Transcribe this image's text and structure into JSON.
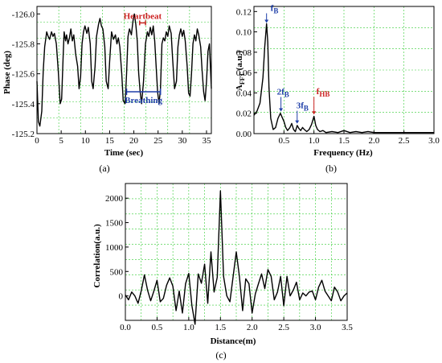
{
  "chart_data": [
    {
      "panel": "(a)",
      "type": "line",
      "xlabel": "Time (sec)",
      "ylabel": "Phase (deg)",
      "xlim": [
        0,
        36
      ],
      "ylim": [
        -125.2,
        -126.05
      ],
      "y_axis_inverted": true,
      "x_ticks": [
        0,
        5,
        10,
        15,
        20,
        25,
        30,
        35
      ],
      "x_tick_labels": [
        "0",
        "5",
        "10",
        "15",
        "20",
        "25",
        "30",
        "35"
      ],
      "y_ticks": [
        -126.0,
        -125.8,
        -125.6,
        -125.4,
        -125.2
      ],
      "y_tick_labels": [
        "-126.0",
        "-125.8",
        "-125.6",
        "-125.4",
        "-125.2"
      ],
      "grid": true,
      "series": [
        {
          "x": [
            0,
            0.3,
            0.6,
            1.0,
            1.3,
            1.6,
            2.0,
            2.3,
            2.6,
            3.0,
            3.3,
            3.6,
            4.0,
            4.4,
            4.8,
            5.1,
            5.4,
            5.6,
            5.9,
            6.1,
            6.4,
            6.7,
            7.0,
            7.3,
            7.6,
            8.0,
            8.4,
            8.7,
            9.0,
            9.3,
            9.6,
            9.9,
            10.3,
            10.6,
            11.0,
            11.3,
            11.6,
            12.0,
            12.3,
            12.7,
            13.0,
            13.3,
            13.6,
            14.0,
            14.3,
            14.7,
            15.0,
            15.4,
            15.8,
            16.2,
            16.5,
            16.8,
            17.1,
            17.5,
            17.8,
            18.2,
            18.5,
            18.8,
            19.1,
            19.5,
            19.8,
            20.1,
            20.4,
            20.7,
            21.0,
            21.3,
            21.6,
            22.0,
            22.4,
            22.8,
            23.1,
            23.4,
            23.7,
            24.0,
            24.3,
            24.6,
            24.9,
            25.2,
            25.5,
            25.8,
            26.1,
            26.4,
            26.7,
            27.0,
            27.3,
            27.7,
            28.0,
            28.4,
            28.8,
            29.1,
            29.4,
            29.7,
            30.0,
            30.3,
            30.6,
            31.0,
            31.3,
            31.6,
            31.9,
            32.2,
            32.5,
            32.8,
            33.1,
            33.4,
            33.8,
            34.1,
            34.4,
            34.7,
            35.0,
            35.3,
            35.6,
            36.0
          ],
          "y": [
            -125.55,
            -125.28,
            -125.25,
            -125.35,
            -125.62,
            -125.78,
            -125.88,
            -125.85,
            -125.83,
            -125.88,
            -125.85,
            -125.87,
            -125.8,
            -125.62,
            -125.4,
            -125.43,
            -125.72,
            -125.88,
            -125.82,
            -125.86,
            -125.8,
            -125.84,
            -125.9,
            -125.82,
            -125.86,
            -125.73,
            -125.65,
            -125.5,
            -125.58,
            -125.8,
            -125.88,
            -125.92,
            -125.87,
            -125.91,
            -125.8,
            -125.55,
            -125.5,
            -125.65,
            -125.85,
            -125.93,
            -125.97,
            -125.92,
            -125.9,
            -125.78,
            -125.55,
            -125.5,
            -125.68,
            -125.88,
            -125.83,
            -125.86,
            -125.8,
            -125.84,
            -125.78,
            -125.6,
            -125.42,
            -125.4,
            -125.6,
            -125.85,
            -125.9,
            -125.86,
            -125.95,
            -126.0,
            -125.93,
            -125.82,
            -125.6,
            -125.48,
            -125.4,
            -125.55,
            -125.8,
            -125.88,
            -125.85,
            -125.91,
            -125.86,
            -125.92,
            -125.82,
            -125.65,
            -125.48,
            -125.4,
            -125.5,
            -125.8,
            -125.84,
            -125.82,
            -125.88,
            -125.85,
            -125.92,
            -125.87,
            -125.7,
            -125.5,
            -125.55,
            -125.78,
            -125.86,
            -125.9,
            -125.85,
            -125.89,
            -125.82,
            -125.65,
            -125.47,
            -125.45,
            -125.6,
            -125.8,
            -125.86,
            -125.82,
            -125.9,
            -125.86,
            -125.78,
            -125.62,
            -125.48,
            -125.42,
            -125.55,
            -125.75,
            -125.8,
            -125.5
          ]
        }
      ],
      "annotations": [
        {
          "text": "Heartbeat",
          "color": "#cc2222",
          "span_x": [
            21.2,
            22.4
          ],
          "y": -125.94
        },
        {
          "text": "Breathing",
          "color": "#1f3fa8",
          "span_x": [
            18.5,
            25.5
          ],
          "y": -125.48
        }
      ]
    },
    {
      "panel": "(b)",
      "type": "line",
      "xlabel": "Frequency (Hz)",
      "ylabel": "A",
      "ylabel_sub": "FFT",
      "ylabel_units": " (a.u.)",
      "xlim": [
        0,
        3.0
      ],
      "ylim": [
        0,
        0.125
      ],
      "x_ticks": [
        0.5,
        1.0,
        1.5,
        2.0,
        2.5,
        3.0
      ],
      "x_tick_labels": [
        "0.5",
        "1.0",
        "1.5",
        "2.0",
        "2.5",
        "3.0"
      ],
      "y_ticks": [
        0.0,
        0.02,
        0.04,
        0.06,
        0.08,
        0.1,
        0.12
      ],
      "y_tick_labels": [
        "0.00",
        "0.02",
        "0.04",
        "0.06",
        "0.08",
        "0.10",
        "0.12"
      ],
      "grid": true,
      "series": [
        {
          "x": [
            0,
            0.05,
            0.1,
            0.15,
            0.18,
            0.21,
            0.23,
            0.25,
            0.28,
            0.32,
            0.36,
            0.4,
            0.44,
            0.47,
            0.5,
            0.53,
            0.56,
            0.6,
            0.63,
            0.66,
            0.69,
            0.72,
            0.75,
            0.78,
            0.81,
            0.84,
            0.88,
            0.92,
            0.96,
            1.0,
            1.03,
            1.06,
            1.1,
            1.15,
            1.2,
            1.3,
            1.4,
            1.5,
            1.6,
            1.7,
            1.8,
            1.9,
            2.0,
            2.2,
            2.4,
            2.6,
            2.8,
            3.0
          ],
          "y": [
            0.018,
            0.022,
            0.03,
            0.055,
            0.085,
            0.108,
            0.09,
            0.045,
            0.015,
            0.004,
            0.006,
            0.015,
            0.02,
            0.016,
            0.012,
            0.006,
            0.003,
            0.006,
            0.01,
            0.004,
            0.002,
            0.008,
            0.005,
            0.003,
            0.006,
            0.004,
            0.002,
            0.004,
            0.009,
            0.017,
            0.008,
            0.004,
            0.002,
            0.003,
            0.001,
            0.002,
            0.001,
            0.003,
            0.001,
            0.002,
            0.001,
            0.002,
            0.001,
            0.001,
            0.001,
            0.001,
            0.001,
            0.001
          ]
        }
      ],
      "annotations": [
        {
          "text": "f",
          "sub": "B",
          "color": "#1f3fa8",
          "x": 0.21,
          "y": 0.108
        },
        {
          "text": "2f",
          "sub": "B",
          "color": "#1f3fa8",
          "x": 0.45,
          "y": 0.021
        },
        {
          "text": "3f",
          "sub": "B",
          "color": "#1f3fa8",
          "x": 0.72,
          "y": 0.009
        },
        {
          "text": "f",
          "sub": "HB",
          "color": "#cc2222",
          "x": 1.0,
          "y": 0.018
        }
      ]
    },
    {
      "panel": "(c)",
      "type": "line",
      "xlabel": "Distance(m)",
      "ylabel": "Correlation(a.u.)",
      "xlim": [
        0,
        3.5
      ],
      "ylim": [
        -500,
        2300
      ],
      "x_ticks": [
        0.0,
        0.5,
        1.0,
        1.5,
        2.0,
        2.5,
        3.0,
        3.5
      ],
      "x_tick_labels": [
        "0.0",
        "0.5",
        "1.0",
        "1.5",
        "2.0",
        "2.5",
        "3.0",
        "3.5"
      ],
      "y_ticks": [
        0,
        500,
        1000,
        1500,
        2000
      ],
      "y_tick_labels": [
        "0",
        "500",
        "1000",
        "1500",
        "2000"
      ],
      "grid": true,
      "series": [
        {
          "x": [
            0,
            0.05,
            0.1,
            0.15,
            0.2,
            0.25,
            0.3,
            0.35,
            0.4,
            0.45,
            0.5,
            0.55,
            0.6,
            0.65,
            0.7,
            0.75,
            0.8,
            0.85,
            0.9,
            0.95,
            1.0,
            1.05,
            1.1,
            1.15,
            1.2,
            1.25,
            1.3,
            1.35,
            1.4,
            1.45,
            1.5,
            1.55,
            1.6,
            1.65,
            1.7,
            1.75,
            1.8,
            1.85,
            1.9,
            1.95,
            2.0,
            2.05,
            2.1,
            2.15,
            2.2,
            2.25,
            2.3,
            2.35,
            2.4,
            2.45,
            2.5,
            2.55,
            2.6,
            2.65,
            2.7,
            2.75,
            2.8,
            2.85,
            2.9,
            2.95,
            3.0,
            3.05,
            3.1,
            3.15,
            3.2,
            3.25,
            3.3,
            3.35,
            3.4,
            3.45,
            3.5
          ],
          "y": [
            20,
            -80,
            80,
            0,
            -150,
            100,
            430,
            120,
            -100,
            100,
            320,
            -120,
            -50,
            220,
            370,
            200,
            -300,
            100,
            -350,
            250,
            460,
            -200,
            -580,
            450,
            260,
            650,
            -150,
            900,
            80,
            380,
            2150,
            400,
            0,
            -120,
            400,
            900,
            400,
            -300,
            350,
            250,
            -350,
            40,
            250,
            450,
            150,
            540,
            400,
            -80,
            80,
            400,
            -200,
            400,
            0,
            120,
            280,
            -80,
            60,
            0,
            80,
            100,
            -80,
            180,
            320,
            100,
            0,
            -100,
            180,
            80,
            -100,
            0,
            60
          ]
        }
      ]
    }
  ]
}
